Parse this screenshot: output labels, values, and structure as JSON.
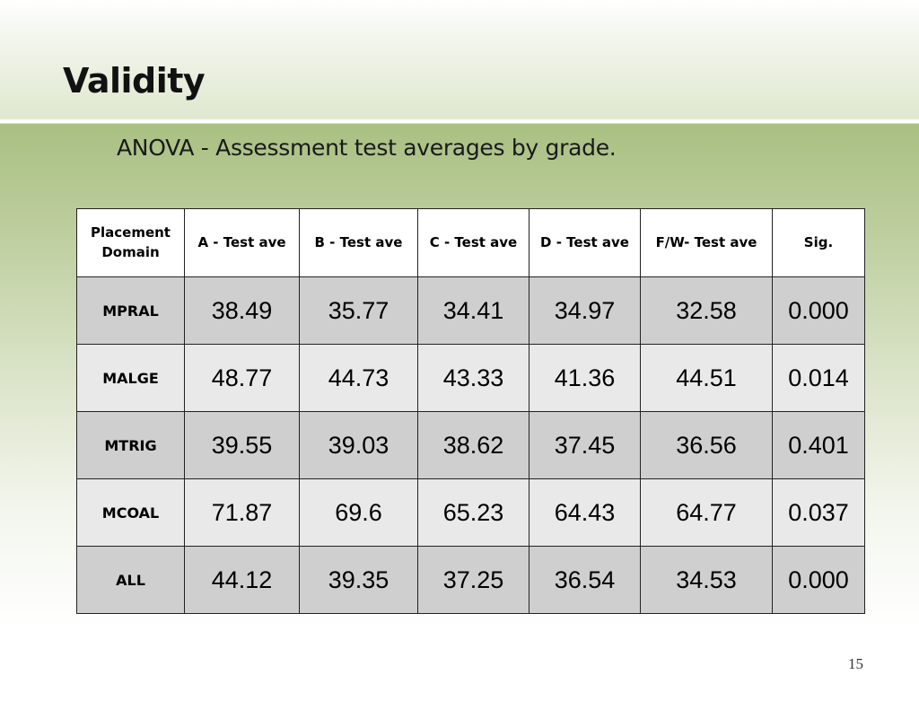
{
  "slide": {
    "title": "Validity",
    "subtitle": "ANOVA - Assessment test averages by grade.",
    "page_number": "15"
  },
  "table": {
    "headers": [
      "Placement Domain",
      "A - Test ave",
      "B - Test ave",
      "C - Test ave",
      "D - Test ave",
      "F/W- Test ave",
      "Sig."
    ],
    "rows": [
      {
        "domain": "MPRAL",
        "a": "38.49",
        "b": "35.77",
        "c": "34.41",
        "d": "34.97",
        "fw": "32.58",
        "sig": "0.000"
      },
      {
        "domain": "MALGE",
        "a": "48.77",
        "b": "44.73",
        "c": "43.33",
        "d": "41.36",
        "fw": "44.51",
        "sig": "0.014"
      },
      {
        "domain": "MTRIG",
        "a": "39.55",
        "b": "39.03",
        "c": "38.62",
        "d": "37.45",
        "fw": "36.56",
        "sig": "0.401"
      },
      {
        "domain": "MCOAL",
        "a": "71.87",
        "b": "69.6",
        "c": "65.23",
        "d": "64.43",
        "fw": "64.77",
        "sig": "0.037"
      },
      {
        "domain": "ALL",
        "a": "44.12",
        "b": "39.35",
        "c": "37.25",
        "d": "36.54",
        "fw": "34.53",
        "sig": "0.000"
      }
    ]
  }
}
